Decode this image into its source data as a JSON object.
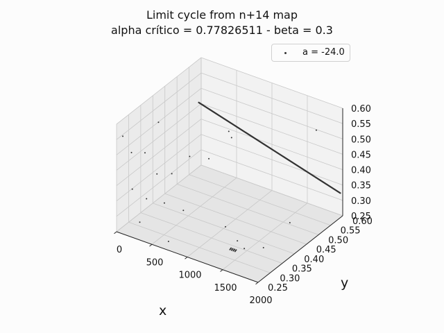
{
  "figure": {
    "title_line1": "Limit cycle from n+14 map",
    "title_line2": "alpha crítico = 0.77826511 - beta = 0.3",
    "background": "#fcfcfc",
    "grid_color": "#c8c8c8",
    "pane_colors": [
      "#f2f2f2",
      "#ebebeb",
      "#e5e5e5"
    ]
  },
  "chart_data": {
    "type": "scatter",
    "projection": "3d",
    "title": "Limit cycle from n+14 map\nalpha crítico = 0.77826511 - beta = 0.3",
    "xlabel": "x",
    "ylabel": "y",
    "zlabel": "",
    "xlim": [
      0,
      2000
    ],
    "ylim": [
      0.25,
      0.6
    ],
    "zlim": [
      0.25,
      0.6
    ],
    "xticks": [
      "0",
      "500",
      "1000",
      "1500",
      "2000"
    ],
    "yticks": [
      "0.25",
      "0.30",
      "0.35",
      "0.40",
      "0.45",
      "0.50",
      "0.55",
      "0.60"
    ],
    "zticks": [
      "0.25",
      "0.30",
      "0.35",
      "0.40",
      "0.45",
      "0.50",
      "0.55",
      "0.60"
    ],
    "grid": true,
    "legend_position": "top-right",
    "marker_color": "#333333",
    "series": [
      {
        "name": "a = -24.0",
        "marker": ".",
        "points_description": "Dense cluster forming a straight line at x≈0–2000, y≈0.59, z≈0.45 → 0.33 plus scattered points at low x",
        "line_segment": {
          "x_start": 0,
          "x_end": 2000,
          "y": 0.59,
          "z_start": 0.46,
          "z_end": 0.33,
          "n": 300
        },
        "cluster": {
          "x": 1500,
          "y": 0.28,
          "z": 0.3,
          "n": 12
        },
        "scatter_points": [
          {
            "x": 20,
            "y": 0.27,
            "z": 0.55
          },
          {
            "x": 40,
            "y": 0.3,
            "z": 0.48
          },
          {
            "x": 60,
            "y": 0.35,
            "z": 0.45
          },
          {
            "x": 80,
            "y": 0.4,
            "z": 0.52
          },
          {
            "x": 120,
            "y": 0.28,
            "z": 0.38
          },
          {
            "x": 150,
            "y": 0.33,
            "z": 0.32
          },
          {
            "x": 200,
            "y": 0.42,
            "z": 0.35
          },
          {
            "x": 260,
            "y": 0.27,
            "z": 0.29
          },
          {
            "x": 300,
            "y": 0.36,
            "z": 0.3
          },
          {
            "x": 350,
            "y": 0.45,
            "z": 0.4
          },
          {
            "x": 400,
            "y": 0.3,
            "z": 0.44
          },
          {
            "x": 450,
            "y": 0.5,
            "z": 0.37
          },
          {
            "x": 500,
            "y": 0.38,
            "z": 0.28
          },
          {
            "x": 600,
            "y": 0.55,
            "z": 0.42
          },
          {
            "x": 700,
            "y": 0.26,
            "z": 0.27
          },
          {
            "x": 800,
            "y": 0.48,
            "z": 0.5
          },
          {
            "x": 1300,
            "y": 0.32,
            "z": 0.33
          },
          {
            "x": 1400,
            "y": 0.34,
            "z": 0.28
          },
          {
            "x": 1600,
            "y": 0.31,
            "z": 0.29
          },
          {
            "x": 1700,
            "y": 0.36,
            "z": 0.27
          },
          {
            "x": 1800,
            "y": 0.44,
            "z": 0.31
          },
          {
            "x": 1900,
            "y": 0.52,
            "z": 0.57
          }
        ]
      }
    ]
  }
}
